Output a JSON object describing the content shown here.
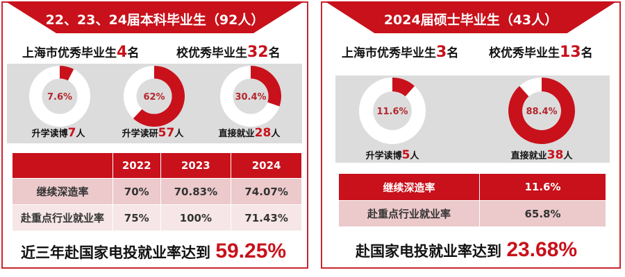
{
  "colors": {
    "accent": "#c8111b",
    "band": "#dcdcdc",
    "ring": "#ffffff"
  },
  "undergrad": {
    "title": "22、23、24届本科毕业生（92人）",
    "shanghai_label": "上海市优秀毕业生",
    "shanghai_count": "4",
    "unit_ming": "名",
    "school_label": "校优秀毕业生",
    "school_count": "32",
    "donuts": [
      {
        "pct_label": "7.6%",
        "value": 7.6,
        "label": "升学读博",
        "count": "7",
        "unit": "人"
      },
      {
        "pct_label": "62%",
        "value": 62,
        "label": "升学读研",
        "count": "57",
        "unit": "人"
      },
      {
        "pct_label": "30.4%",
        "value": 30.4,
        "label": "直接就业",
        "count": "28",
        "unit": "人"
      }
    ],
    "table": {
      "headers": [
        "",
        "2022",
        "2023",
        "2024"
      ],
      "rows": [
        [
          "继续深造率",
          "70%",
          "70.83%",
          "74.07%"
        ],
        [
          "赴重点行业就业率",
          "75%",
          "100%",
          "71.43%"
        ]
      ]
    },
    "footer_text": "近三年赴国家电投就业率达到",
    "footer_value": "59.25%"
  },
  "master": {
    "title": "2024届硕士毕业生（43人）",
    "shanghai_label": "上海市优秀毕业生",
    "shanghai_count": "3",
    "unit_ming": "名",
    "school_label": "校优秀毕业生",
    "school_count": "13",
    "donuts": [
      {
        "pct_label": "11.6%",
        "value": 11.6,
        "label": "升学读博",
        "count": "5",
        "unit": "人"
      },
      {
        "pct_label": "88.4%",
        "value": 88.4,
        "label": "直接就业",
        "count": "38",
        "unit": "人"
      }
    ],
    "table": {
      "rows": [
        [
          "继续深造率",
          "11.6%"
        ],
        [
          "赴重点行业就业率",
          "65.8%"
        ]
      ]
    },
    "footer_text": "赴国家电投就业率达到",
    "footer_value": "23.68%"
  }
}
